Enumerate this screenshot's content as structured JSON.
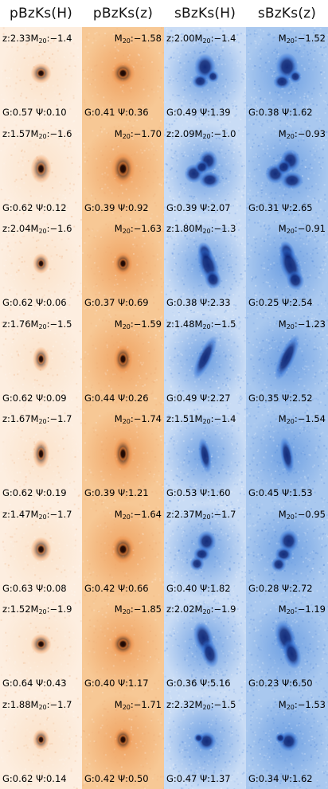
{
  "headers": [
    "pBzKs(H)",
    "pBzKs(z)",
    "sBzKs(H)",
    "sBzKs(z)"
  ],
  "colors": {
    "p_bg_H": "#fdeee0",
    "p_bg_z": "#f7c895",
    "p_bg_z_dark": "#efa261",
    "p_core": "#1a0400",
    "p_halo": "#e8762a",
    "s_bg_H": "#c9dcf5",
    "s_bg_z": "#a9c8ef",
    "s_bg_dark": "#6d9fe2",
    "s_core": "#081e6e",
    "s_halo": "#2f6fd6"
  },
  "rows": [
    {
      "z_H": "z:2.33",
      "m20_H": "−1.4",
      "g_H": "G:0.57",
      "psi_H": "Ψ:0.10",
      "m20_pz": "−1.58",
      "g_pz": "G:0.41",
      "psi_pz": "Ψ:0.36",
      "z_sH": "z:2.00",
      "m20_sH": "−1.4",
      "g_sH": "G:0.49",
      "psi_sH": "Ψ:1.39",
      "m20_sz": "−1.52",
      "g_sz": "G:0.38",
      "psi_sz": "Ψ:1.62"
    },
    {
      "z_H": "z:1.57",
      "m20_H": "−1.6",
      "g_H": "G:0.62",
      "psi_H": "Ψ:0.12",
      "m20_pz": "−1.70",
      "g_pz": "G:0.39",
      "psi_pz": "Ψ:0.92",
      "z_sH": "z:2.09",
      "m20_sH": "−1.0",
      "g_sH": "G:0.39",
      "psi_sH": "Ψ:2.07",
      "m20_sz": "−0.93",
      "g_sz": "G:0.31",
      "psi_sz": "Ψ:2.65"
    },
    {
      "z_H": "z:2.04",
      "m20_H": "−1.6",
      "g_H": "G:0.62",
      "psi_H": "Ψ:0.06",
      "m20_pz": "−1.63",
      "g_pz": "G:0.37",
      "psi_pz": "Ψ:0.69",
      "z_sH": "z:1.80",
      "m20_sH": "−1.3",
      "g_sH": "G:0.38",
      "psi_sH": "Ψ:2.33",
      "m20_sz": "−0.91",
      "g_sz": "G:0.25",
      "psi_sz": "Ψ:2.54"
    },
    {
      "z_H": "z:1.76",
      "m20_H": "−1.5",
      "g_H": "G:0.62",
      "psi_H": "Ψ:0.09",
      "m20_pz": "−1.59",
      "g_pz": "G:0.44",
      "psi_pz": "Ψ:0.26",
      "z_sH": "z:1.48",
      "m20_sH": "−1.5",
      "g_sH": "G:0.49",
      "psi_sH": "Ψ:2.27",
      "m20_sz": "−1.23",
      "g_sz": "G:0.35",
      "psi_sz": "Ψ:2.52"
    },
    {
      "z_H": "z:1.67",
      "m20_H": "−1.7",
      "g_H": "G:0.62",
      "psi_H": "Ψ:0.19",
      "m20_pz": "−1.74",
      "g_pz": "G:0.39",
      "psi_pz": "Ψ:1.21",
      "z_sH": "z:1.51",
      "m20_sH": "−1.4",
      "g_sH": "G:0.53",
      "psi_sH": "Ψ:1.60",
      "m20_sz": "−1.54",
      "g_sz": "G:0.45",
      "psi_sz": "Ψ:1.53"
    },
    {
      "z_H": "z:1.47",
      "m20_H": "−1.7",
      "g_H": "G:0.63",
      "psi_H": "Ψ:0.08",
      "m20_pz": "−1.64",
      "g_pz": "G:0.42",
      "psi_pz": "Ψ:0.66",
      "z_sH": "z:2.37",
      "m20_sH": "−1.7",
      "g_sH": "G:0.40",
      "psi_sH": "Ψ:1.82",
      "m20_sz": "−0.95",
      "g_sz": "G:0.28",
      "psi_sz": "Ψ:2.72"
    },
    {
      "z_H": "z:1.52",
      "m20_H": "−1.9",
      "g_H": "G:0.64",
      "psi_H": "Ψ:0.43",
      "m20_pz": "−1.85",
      "g_pz": "G:0.40",
      "psi_pz": "Ψ:1.17",
      "z_sH": "z:2.02",
      "m20_sH": "−1.9",
      "g_sH": "G:0.36",
      "psi_sH": "Ψ:5.16",
      "m20_sz": "−1.19",
      "g_sz": "G:0.23",
      "psi_sz": "Ψ:6.50"
    },
    {
      "z_H": "z:1.88",
      "m20_H": "−1.7",
      "g_H": "G:0.62",
      "psi_H": "Ψ:0.14",
      "m20_pz": "−1.71",
      "g_pz": "G:0.42",
      "psi_pz": "Ψ:0.50",
      "z_sH": "z:2.32",
      "m20_sH": "−1.5",
      "g_sH": "G:0.47",
      "psi_sH": "Ψ:1.37",
      "m20_sz": "−1.53",
      "g_sz": "G:0.34",
      "psi_sz": "Ψ:1.62"
    }
  ]
}
